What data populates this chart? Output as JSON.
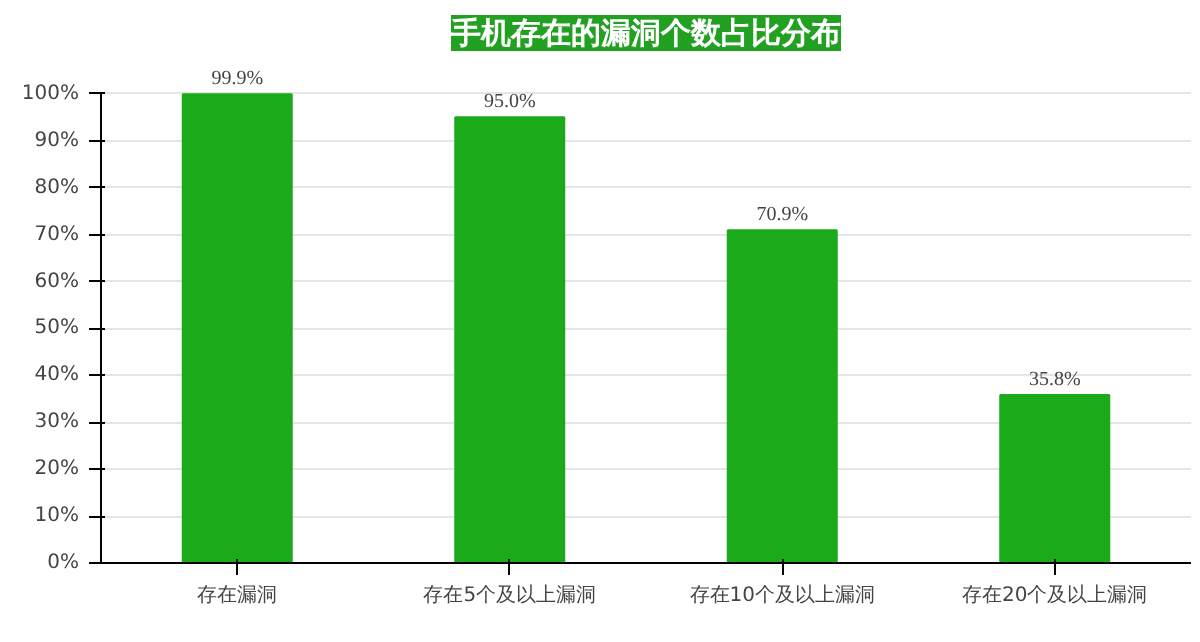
{
  "chart_data": {
    "type": "bar",
    "title": "手机存在的漏洞个数占比分布",
    "categories": [
      "存在漏洞",
      "存在5个及以上漏洞",
      "存在10个及以上漏洞",
      "存在20个及以上漏洞"
    ],
    "values": [
      99.9,
      95.0,
      70.9,
      35.8
    ],
    "value_labels": [
      "99.9%",
      "95.0%",
      "70.9%",
      "35.8%"
    ],
    "color": "#1aaa1a",
    "ylim": [
      0,
      100
    ],
    "yticks": [
      {
        "value": 0,
        "label": "0%"
      },
      {
        "value": 10,
        "label": "10%"
      },
      {
        "value": 20,
        "label": "20%"
      },
      {
        "value": 30,
        "label": "30%"
      },
      {
        "value": 40,
        "label": "40%"
      },
      {
        "value": 50,
        "label": "50%"
      },
      {
        "value": 60,
        "label": "60%"
      },
      {
        "value": 70,
        "label": "70%"
      },
      {
        "value": 80,
        "label": "80%"
      },
      {
        "value": 90,
        "label": "90%"
      },
      {
        "value": 100,
        "label": "100%"
      }
    ],
    "grid": "y"
  }
}
